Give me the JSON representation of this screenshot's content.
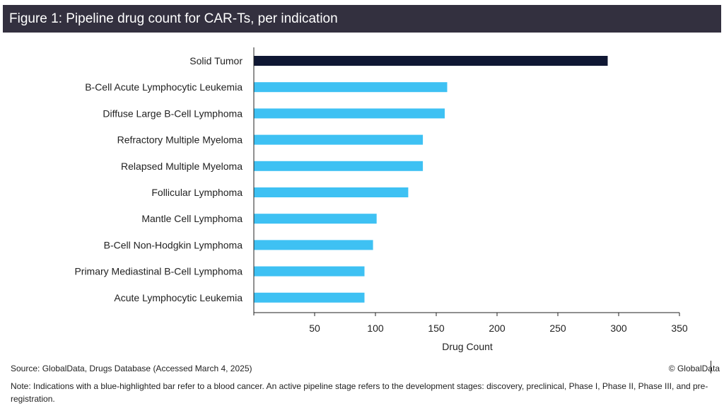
{
  "figure": {
    "title": "Figure 1: Pipeline drug count for CAR-Ts, per indication",
    "source": "Source: GlobalData, Drugs Database (Accessed March 4, 2025)",
    "copyright": "© GlobalData",
    "note": "Note: Indications with a blue-highlighted bar refer to a blood cancer. An active pipeline stage refers to the development stages: discovery, preclinical, Phase I, Phase II, Phase III, and pre-registration."
  },
  "colors": {
    "title_bg": "#33303f",
    "highlight_bar": "#0f1733",
    "blood_cancer_bar": "#3ec1f3",
    "axis": "#222222"
  },
  "chart_data": {
    "type": "bar",
    "orientation": "horizontal",
    "title": "Figure 1: Pipeline drug count for CAR-Ts, per indication",
    "xlabel": "Drug Count",
    "ylabel": "",
    "xlim": [
      0,
      350
    ],
    "xticks": [
      50,
      100,
      150,
      200,
      250,
      300,
      350
    ],
    "grid": false,
    "legend": "none",
    "categories": [
      "Solid Tumor",
      "B-Cell Acute Lymphocytic Leukemia",
      "Diffuse Large B-Cell Lymphoma",
      "Refractory Multiple Myeloma",
      "Relapsed Multiple Myeloma",
      "Follicular Lymphoma",
      "Mantle Cell Lymphoma",
      "B-Cell Non-Hodgkin Lymphoma",
      "Primary Mediastinal B-Cell Lymphoma",
      "Acute Lymphocytic Leukemia"
    ],
    "values": [
      291,
      159,
      157,
      139,
      139,
      127,
      101,
      98,
      91,
      91
    ],
    "blood_cancer": [
      false,
      true,
      true,
      true,
      true,
      true,
      true,
      true,
      true,
      true
    ]
  }
}
